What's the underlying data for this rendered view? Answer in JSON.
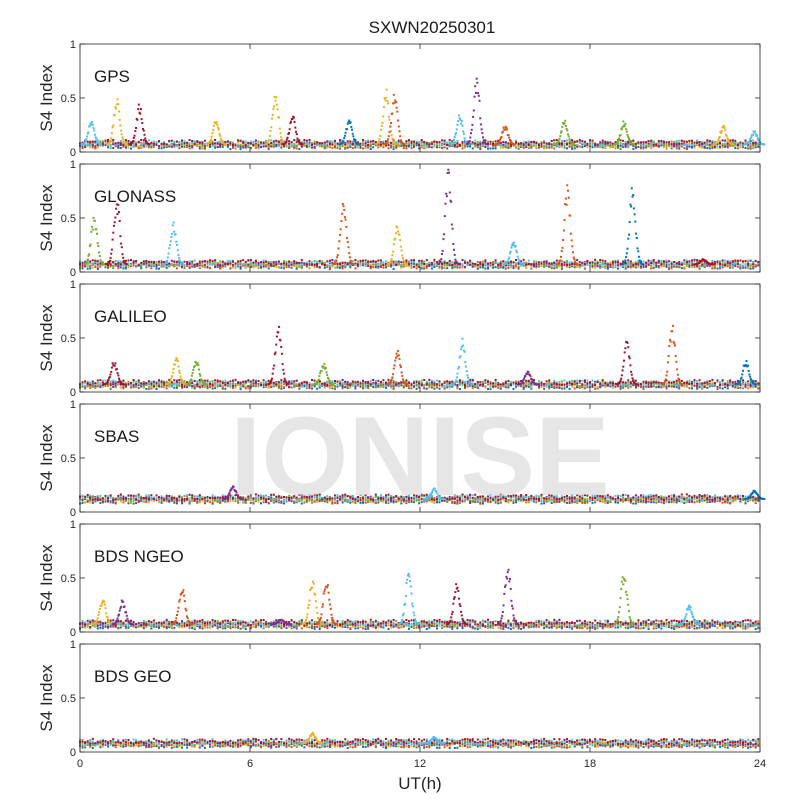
{
  "chart_data": {
    "type": "scatter",
    "title": "SXWN20250301",
    "xlabel": "UT(h)",
    "xlim": [
      0,
      24
    ],
    "xticks": [
      "0",
      "6",
      "12",
      "18",
      "24"
    ],
    "ylabel": "S4 Index",
    "ylim": [
      0,
      1
    ],
    "yticks": [
      "0",
      "0.5",
      "1"
    ],
    "watermark": "IONISE",
    "colors": [
      "#0072BD",
      "#D95319",
      "#EDB120",
      "#7E2F8E",
      "#77AC30",
      "#4DBEEE",
      "#A2142F"
    ],
    "panels": [
      {
        "name": "GPS",
        "baseline": 0.07,
        "spikes": [
          {
            "t": 0.4,
            "peak": 0.3,
            "color": 5
          },
          {
            "t": 1.3,
            "peak": 0.5,
            "color": 2
          },
          {
            "t": 2.1,
            "peak": 0.45,
            "color": 6
          },
          {
            "t": 4.8,
            "peak": 0.3,
            "color": 2
          },
          {
            "t": 6.9,
            "peak": 0.58,
            "color": 2
          },
          {
            "t": 7.5,
            "peak": 0.35,
            "color": 6
          },
          {
            "t": 9.5,
            "peak": 0.3,
            "color": 0
          },
          {
            "t": 10.8,
            "peak": 0.6,
            "color": 2
          },
          {
            "t": 11.1,
            "peak": 0.55,
            "color": 1
          },
          {
            "t": 13.4,
            "peak": 0.35,
            "color": 5
          },
          {
            "t": 14.0,
            "peak": 0.7,
            "color": 3
          },
          {
            "t": 15.0,
            "peak": 0.25,
            "color": 1
          },
          {
            "t": 17.1,
            "peak": 0.3,
            "color": 4
          },
          {
            "t": 19.2,
            "peak": 0.3,
            "color": 4
          },
          {
            "t": 22.7,
            "peak": 0.25,
            "color": 2
          },
          {
            "t": 23.8,
            "peak": 0.2,
            "color": 5
          }
        ]
      },
      {
        "name": "GLONASS",
        "baseline": 0.07,
        "spikes": [
          {
            "t": 0.5,
            "peak": 0.55,
            "color": 4
          },
          {
            "t": 1.3,
            "peak": 0.7,
            "color": 6
          },
          {
            "t": 3.3,
            "peak": 0.48,
            "color": 5
          },
          {
            "t": 9.3,
            "peak": 0.72,
            "color": 1
          },
          {
            "t": 11.2,
            "peak": 0.45,
            "color": 2
          },
          {
            "t": 13.0,
            "peak": 1.0,
            "color": 3
          },
          {
            "t": 15.3,
            "peak": 0.3,
            "color": 5
          },
          {
            "t": 17.2,
            "peak": 0.82,
            "color": 1
          },
          {
            "t": 19.5,
            "peak": 0.8,
            "color": 0
          },
          {
            "t": 22.0,
            "peak": 0.12,
            "color": 6
          }
        ]
      },
      {
        "name": "GALILEO",
        "baseline": 0.07,
        "spikes": [
          {
            "t": 1.2,
            "peak": 0.3,
            "color": 6
          },
          {
            "t": 3.4,
            "peak": 0.32,
            "color": 2
          },
          {
            "t": 4.1,
            "peak": 0.3,
            "color": 4
          },
          {
            "t": 7.0,
            "peak": 0.68,
            "color": 6
          },
          {
            "t": 8.6,
            "peak": 0.28,
            "color": 4
          },
          {
            "t": 11.2,
            "peak": 0.4,
            "color": 1
          },
          {
            "t": 13.5,
            "peak": 0.5,
            "color": 5
          },
          {
            "t": 15.8,
            "peak": 0.2,
            "color": 3
          },
          {
            "t": 19.3,
            "peak": 0.48,
            "color": 6
          },
          {
            "t": 20.9,
            "peak": 0.65,
            "color": 1
          },
          {
            "t": 23.5,
            "peak": 0.3,
            "color": 0
          }
        ]
      },
      {
        "name": "SBAS",
        "baseline": 0.12,
        "spikes": [
          {
            "t": 5.4,
            "peak": 0.24,
            "color": 3
          },
          {
            "t": 12.5,
            "peak": 0.22,
            "color": 5
          },
          {
            "t": 23.8,
            "peak": 0.2,
            "color": 0
          }
        ]
      },
      {
        "name": "BDS NGEO",
        "baseline": 0.07,
        "spikes": [
          {
            "t": 0.8,
            "peak": 0.32,
            "color": 2
          },
          {
            "t": 1.5,
            "peak": 0.3,
            "color": 3
          },
          {
            "t": 3.6,
            "peak": 0.45,
            "color": 1
          },
          {
            "t": 7.1,
            "peak": 0.12,
            "color": 3
          },
          {
            "t": 8.2,
            "peak": 0.52,
            "color": 2
          },
          {
            "t": 8.7,
            "peak": 0.52,
            "color": 1
          },
          {
            "t": 11.6,
            "peak": 0.58,
            "color": 5
          },
          {
            "t": 13.3,
            "peak": 0.46,
            "color": 6
          },
          {
            "t": 15.1,
            "peak": 0.65,
            "color": 3
          },
          {
            "t": 19.2,
            "peak": 0.58,
            "color": 4
          },
          {
            "t": 21.5,
            "peak": 0.25,
            "color": 5
          }
        ]
      },
      {
        "name": "BDS GEO",
        "baseline": 0.08,
        "spikes": [
          {
            "t": 8.2,
            "peak": 0.18,
            "color": 2
          },
          {
            "t": 12.5,
            "peak": 0.14,
            "color": 5
          }
        ]
      }
    ]
  }
}
